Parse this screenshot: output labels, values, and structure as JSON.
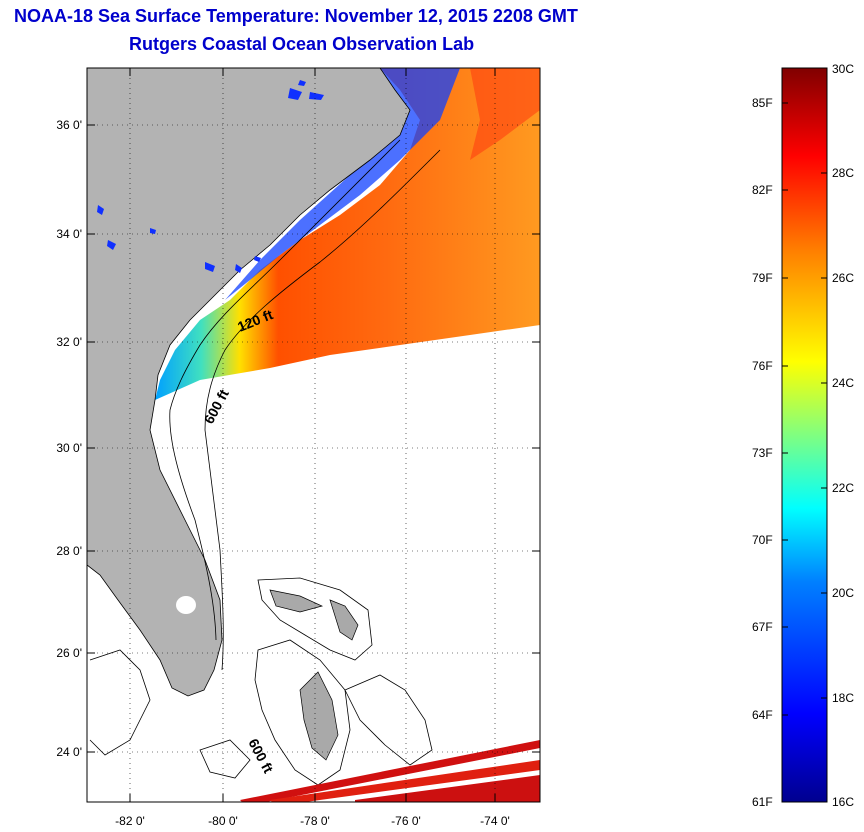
{
  "title": "NOAA-18 Sea Surface Temperature:  November 12, 2015 2208 GMT",
  "subtitle": "Rutgers Coastal Ocean Observation Lab",
  "map": {
    "lat_ticks": [
      "36 0'",
      "34 0'",
      "32 0'",
      "30 0'",
      "28 0'",
      "26 0'",
      "24 0'"
    ],
    "lon_ticks": [
      "-82 0'",
      "-80 0'",
      "-78 0'",
      "-76 0'",
      "-74 0'"
    ],
    "isobath_labels": [
      "120 ft",
      "600 ft",
      "600 ft"
    ],
    "colors": {
      "land": "#b3b3b3",
      "nodata": "#ffffff"
    }
  },
  "colorbar": {
    "fahrenheit": [
      "85F",
      "82F",
      "79F",
      "76F",
      "73F",
      "70F",
      "67F",
      "64F",
      "61F"
    ],
    "celsius": [
      "30C",
      "28C",
      "26C",
      "24C",
      "22C",
      "20C",
      "18C",
      "16C"
    ],
    "range_c": [
      16,
      30
    ]
  }
}
